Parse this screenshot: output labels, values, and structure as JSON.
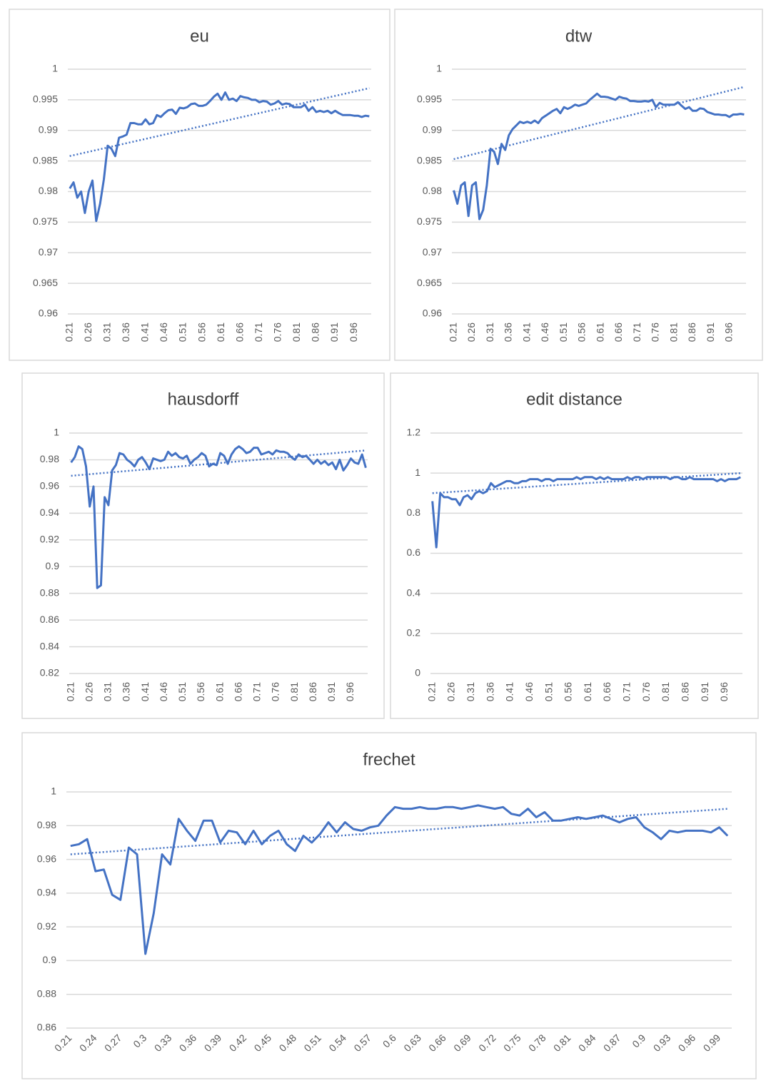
{
  "chart_data": [
    {
      "type": "line",
      "title": "eu",
      "color": "#4472c4",
      "grid": true,
      "ylim": [
        0.96,
        1
      ],
      "yticks": [
        0.96,
        0.965,
        0.97,
        0.975,
        0.98,
        0.985,
        0.99,
        0.995,
        1
      ],
      "categories": [
        "0.21",
        null,
        null,
        null,
        null,
        "0.26",
        null,
        null,
        null,
        null,
        "0.31",
        null,
        null,
        null,
        null,
        "0.36",
        null,
        null,
        null,
        null,
        "0.41",
        null,
        null,
        null,
        null,
        "0.46",
        null,
        null,
        null,
        null,
        "0.51",
        null,
        null,
        null,
        null,
        "0.56",
        null,
        null,
        null,
        null,
        "0.61",
        null,
        null,
        null,
        null,
        "0.66",
        null,
        null,
        null,
        null,
        "0.71",
        null,
        null,
        null,
        null,
        "0.76",
        null,
        null,
        null,
        null,
        "0.81",
        null,
        null,
        null,
        null,
        "0.86",
        null,
        null,
        null,
        null,
        "0.91",
        null,
        null,
        null,
        null,
        "0.96",
        null,
        null,
        null,
        null
      ],
      "values": [
        0.9805,
        0.9815,
        0.979,
        0.98,
        0.9765,
        0.98,
        0.9818,
        0.9752,
        0.978,
        0.982,
        0.9875,
        0.987,
        0.9858,
        0.9888,
        0.989,
        0.9893,
        0.9912,
        0.9912,
        0.991,
        0.991,
        0.9918,
        0.991,
        0.9912,
        0.9925,
        0.9922,
        0.9928,
        0.9933,
        0.9934,
        0.9927,
        0.9937,
        0.9936,
        0.9938,
        0.9943,
        0.9944,
        0.994,
        0.994,
        0.9942,
        0.9948,
        0.9955,
        0.996,
        0.995,
        0.9962,
        0.995,
        0.9952,
        0.9948,
        0.9956,
        0.9954,
        0.9953,
        0.995,
        0.995,
        0.9946,
        0.9948,
        0.9947,
        0.9942,
        0.9944,
        0.9948,
        0.9942,
        0.9944,
        0.9943,
        0.9938,
        0.9938,
        0.9938,
        0.9942,
        0.9932,
        0.9938,
        0.993,
        0.9932,
        0.993,
        0.9932,
        0.9928,
        0.9932,
        0.9928,
        0.9925,
        0.9925,
        0.9925,
        0.9924,
        0.9924,
        0.9922,
        0.9924,
        0.9923
      ],
      "trendline": {
        "start": 0.9858,
        "end": 0.9969
      }
    },
    {
      "type": "line",
      "title": "dtw",
      "color": "#4472c4",
      "grid": true,
      "ylim": [
        0.96,
        1
      ],
      "yticks": [
        0.96,
        0.965,
        0.97,
        0.975,
        0.98,
        0.985,
        0.99,
        0.995,
        1
      ],
      "categories": [
        "0.21",
        null,
        null,
        null,
        null,
        "0.26",
        null,
        null,
        null,
        null,
        "0.31",
        null,
        null,
        null,
        null,
        "0.36",
        null,
        null,
        null,
        null,
        "0.41",
        null,
        null,
        null,
        null,
        "0.46",
        null,
        null,
        null,
        null,
        "0.51",
        null,
        null,
        null,
        null,
        "0.56",
        null,
        null,
        null,
        null,
        "0.61",
        null,
        null,
        null,
        null,
        "0.66",
        null,
        null,
        null,
        null,
        "0.71",
        null,
        null,
        null,
        null,
        "0.76",
        null,
        null,
        null,
        null,
        "0.81",
        null,
        null,
        null,
        null,
        "0.86",
        null,
        null,
        null,
        null,
        "0.91",
        null,
        null,
        null,
        null,
        "0.96",
        null,
        null,
        null,
        null
      ],
      "values": [
        0.9802,
        0.978,
        0.981,
        0.9815,
        0.976,
        0.981,
        0.9815,
        0.9755,
        0.977,
        0.981,
        0.987,
        0.9865,
        0.9845,
        0.9878,
        0.9868,
        0.9892,
        0.9902,
        0.9908,
        0.9914,
        0.9912,
        0.9914,
        0.9912,
        0.9916,
        0.9912,
        0.992,
        0.9924,
        0.9928,
        0.9932,
        0.9935,
        0.9928,
        0.9938,
        0.9935,
        0.9938,
        0.9942,
        0.994,
        0.9942,
        0.9944,
        0.995,
        0.9955,
        0.996,
        0.9955,
        0.9955,
        0.9954,
        0.9952,
        0.995,
        0.9955,
        0.9953,
        0.9952,
        0.9948,
        0.9948,
        0.9947,
        0.9947,
        0.9948,
        0.9947,
        0.995,
        0.9938,
        0.9945,
        0.9942,
        0.9942,
        0.9942,
        0.9942,
        0.9946,
        0.994,
        0.9935,
        0.9938,
        0.9932,
        0.9932,
        0.9936,
        0.9935,
        0.993,
        0.9928,
        0.9926,
        0.9926,
        0.9925,
        0.9925,
        0.9922,
        0.9926,
        0.9926,
        0.9927,
        0.9926
      ],
      "trendline": {
        "start": 0.9853,
        "end": 0.9971
      }
    },
    {
      "type": "line",
      "title": "hausdorff",
      "color": "#4472c4",
      "grid": true,
      "ylim": [
        0.82,
        1
      ],
      "yticks": [
        0.82,
        0.84,
        0.86,
        0.88,
        0.9,
        0.92,
        0.94,
        0.96,
        0.98,
        1
      ],
      "categories": [
        "0.21",
        null,
        null,
        null,
        null,
        "0.26",
        null,
        null,
        null,
        null,
        "0.31",
        null,
        null,
        null,
        null,
        "0.36",
        null,
        null,
        null,
        null,
        "0.41",
        null,
        null,
        null,
        null,
        "0.46",
        null,
        null,
        null,
        null,
        "0.51",
        null,
        null,
        null,
        null,
        "0.56",
        null,
        null,
        null,
        null,
        "0.61",
        null,
        null,
        null,
        null,
        "0.66",
        null,
        null,
        null,
        null,
        "0.71",
        null,
        null,
        null,
        null,
        "0.76",
        null,
        null,
        null,
        null,
        "0.81",
        null,
        null,
        null,
        null,
        "0.86",
        null,
        null,
        null,
        null,
        "0.91",
        null,
        null,
        null,
        null,
        "0.96",
        null,
        null,
        null,
        null
      ],
      "values": [
        0.978,
        0.982,
        0.99,
        0.988,
        0.975,
        0.945,
        0.96,
        0.884,
        0.886,
        0.952,
        0.946,
        0.972,
        0.976,
        0.985,
        0.984,
        0.98,
        0.978,
        0.975,
        0.98,
        0.982,
        0.978,
        0.973,
        0.981,
        0.98,
        0.979,
        0.98,
        0.986,
        0.983,
        0.985,
        0.982,
        0.981,
        0.983,
        0.977,
        0.98,
        0.982,
        0.985,
        0.983,
        0.975,
        0.977,
        0.976,
        0.985,
        0.983,
        0.977,
        0.984,
        0.988,
        0.99,
        0.988,
        0.985,
        0.986,
        0.989,
        0.989,
        0.984,
        0.985,
        0.986,
        0.984,
        0.987,
        0.986,
        0.986,
        0.985,
        0.982,
        0.98,
        0.984,
        0.982,
        0.983,
        0.98,
        0.977,
        0.98,
        0.977,
        0.979,
        0.976,
        0.978,
        0.973,
        0.98,
        0.972,
        0.976,
        0.981,
        0.978,
        0.977,
        0.984,
        0.974
      ],
      "trendline": {
        "start": 0.968,
        "end": 0.987
      }
    },
    {
      "type": "line",
      "title": "edit distance",
      "color": "#4472c4",
      "grid": true,
      "ylim": [
        0,
        1.2
      ],
      "yticks": [
        0,
        0.2,
        0.4,
        0.6,
        0.8,
        1,
        1.2
      ],
      "categories": [
        "0.21",
        null,
        null,
        null,
        null,
        "0.26",
        null,
        null,
        null,
        null,
        "0.31",
        null,
        null,
        null,
        null,
        "0.36",
        null,
        null,
        null,
        null,
        "0.41",
        null,
        null,
        null,
        null,
        "0.46",
        null,
        null,
        null,
        null,
        "0.51",
        null,
        null,
        null,
        null,
        "0.56",
        null,
        null,
        null,
        null,
        "0.61",
        null,
        null,
        null,
        null,
        "0.66",
        null,
        null,
        null,
        null,
        "0.71",
        null,
        null,
        null,
        null,
        "0.76",
        null,
        null,
        null,
        null,
        "0.81",
        null,
        null,
        null,
        null,
        "0.86",
        null,
        null,
        null,
        null,
        "0.91",
        null,
        null,
        null,
        null,
        "0.96",
        null,
        null,
        null,
        null
      ],
      "values": [
        0.86,
        0.63,
        0.9,
        0.88,
        0.88,
        0.87,
        0.87,
        0.84,
        0.88,
        0.89,
        0.87,
        0.9,
        0.91,
        0.9,
        0.91,
        0.95,
        0.93,
        0.94,
        0.95,
        0.96,
        0.96,
        0.95,
        0.95,
        0.96,
        0.96,
        0.97,
        0.97,
        0.97,
        0.96,
        0.97,
        0.97,
        0.96,
        0.97,
        0.97,
        0.97,
        0.97,
        0.97,
        0.98,
        0.97,
        0.98,
        0.98,
        0.98,
        0.97,
        0.98,
        0.97,
        0.98,
        0.97,
        0.97,
        0.97,
        0.97,
        0.98,
        0.97,
        0.98,
        0.98,
        0.97,
        0.98,
        0.98,
        0.98,
        0.98,
        0.98,
        0.98,
        0.97,
        0.98,
        0.98,
        0.97,
        0.97,
        0.98,
        0.97,
        0.97,
        0.97,
        0.97,
        0.97,
        0.97,
        0.96,
        0.97,
        0.96,
        0.97,
        0.97,
        0.97,
        0.98
      ],
      "trendline": {
        "start": 0.9,
        "end": 1.0
      }
    },
    {
      "type": "line",
      "title": "frechet",
      "color": "#4472c4",
      "grid": true,
      "ylim": [
        0.86,
        1
      ],
      "yticks": [
        0.86,
        0.88,
        0.9,
        0.92,
        0.94,
        0.96,
        0.98,
        1
      ],
      "categories": [
        "0.21",
        null,
        null,
        "0.24",
        null,
        null,
        "0.27",
        null,
        null,
        "0.3",
        null,
        null,
        "0.33",
        null,
        null,
        "0.36",
        null,
        null,
        "0.39",
        null,
        null,
        "0.42",
        null,
        null,
        "0.45",
        null,
        null,
        "0.48",
        null,
        null,
        "0.51",
        null,
        null,
        "0.54",
        null,
        null,
        "0.57",
        null,
        null,
        "0.6",
        null,
        null,
        "0.63",
        null,
        null,
        "0.66",
        null,
        null,
        "0.69",
        null,
        null,
        "0.72",
        null,
        null,
        "0.75",
        null,
        null,
        "0.78",
        null,
        null,
        "0.81",
        null,
        null,
        "0.84",
        null,
        null,
        "0.87",
        null,
        null,
        "0.9",
        null,
        null,
        "0.93",
        null,
        null,
        "0.96",
        null,
        null,
        "0.99",
        null
      ],
      "values": [
        0.968,
        0.969,
        0.972,
        0.953,
        0.954,
        0.939,
        0.936,
        0.967,
        0.963,
        0.904,
        0.928,
        0.963,
        0.957,
        0.984,
        0.977,
        0.971,
        0.983,
        0.983,
        0.97,
        0.977,
        0.976,
        0.969,
        0.977,
        0.969,
        0.974,
        0.977,
        0.969,
        0.965,
        0.974,
        0.97,
        0.975,
        0.982,
        0.976,
        0.982,
        0.978,
        0.977,
        0.979,
        0.98,
        0.986,
        0.991,
        0.99,
        0.99,
        0.991,
        0.99,
        0.99,
        0.991,
        0.991,
        0.99,
        0.991,
        0.992,
        0.991,
        0.99,
        0.991,
        0.987,
        0.986,
        0.99,
        0.985,
        0.988,
        0.983,
        0.983,
        0.984,
        0.985,
        0.984,
        0.985,
        0.986,
        0.984,
        0.982,
        0.984,
        0.985,
        0.979,
        0.976,
        0.972,
        0.977,
        0.976,
        0.977,
        0.977,
        0.977,
        0.976,
        0.979,
        0.974
      ],
      "trendline": {
        "start": 0.963,
        "end": 0.99
      }
    }
  ]
}
